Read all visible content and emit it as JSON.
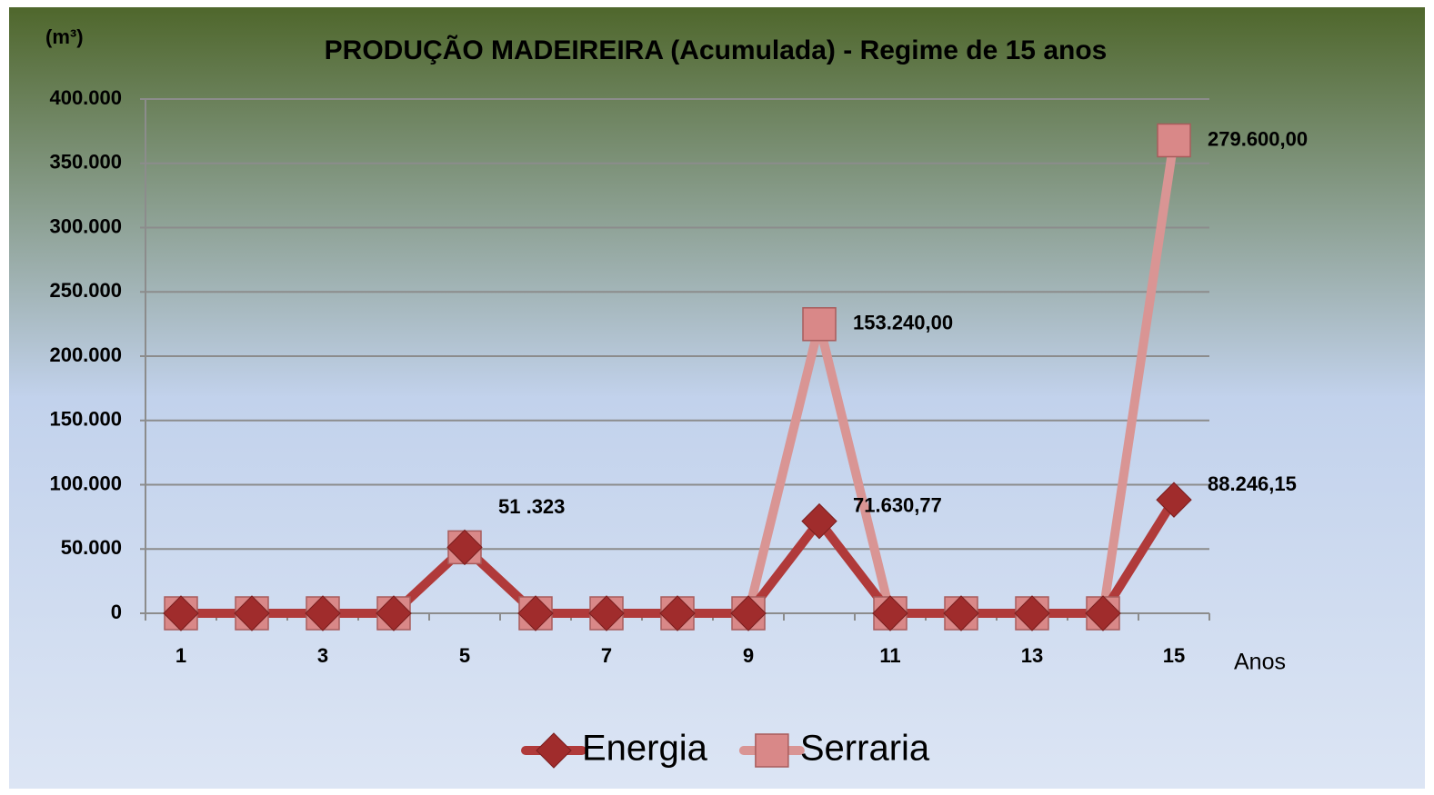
{
  "chart_data": {
    "type": "line",
    "stacked": true,
    "title": "PRODUÇÃO MADEIREIRA (Acumulada)  - Regime de 15 anos",
    "y_label": "(m³)",
    "x_label": "Anos",
    "categories": [
      "1",
      null,
      "3",
      null,
      "5",
      null,
      "7",
      null,
      "9",
      null,
      "11",
      null,
      "13",
      null,
      "15"
    ],
    "series": [
      {
        "name": "Energia",
        "color": "#b03a3a",
        "marker": "diamond",
        "values": [
          0,
          0,
          0,
          0,
          51323,
          0,
          0,
          0,
          0,
          71630.77,
          0,
          0,
          0,
          0,
          88246.15
        ],
        "value_labels": [
          null,
          null,
          null,
          null,
          "51 .323",
          null,
          null,
          null,
          null,
          "71.630,77",
          null,
          null,
          null,
          null,
          "88.246,15"
        ]
      },
      {
        "name": "Serraria",
        "color": "#d99594",
        "marker": "square",
        "values": [
          0,
          0,
          0,
          0,
          0,
          0,
          0,
          0,
          0,
          153240,
          0,
          0,
          0,
          0,
          279600
        ],
        "value_labels": [
          null,
          null,
          null,
          null,
          null,
          null,
          null,
          null,
          null,
          "153.240,00",
          null,
          null,
          null,
          null,
          "279.600,00"
        ]
      }
    ],
    "ylim": [
      0,
      400000
    ],
    "yticks": [
      0,
      {
        "value": 50000,
        "label": "50.000"
      },
      {
        "value": 100000,
        "label": "100.000"
      },
      {
        "value": 150000,
        "label": "150.000"
      },
      {
        "value": 200000,
        "label": "200.000"
      },
      {
        "value": 250000,
        "label": "250.000"
      },
      {
        "value": 300000,
        "label": "300.000"
      },
      {
        "value": 350000,
        "label": "350.000"
      },
      {
        "value": 400000,
        "label": "400.000"
      }
    ],
    "grid": true,
    "legend": "bottom"
  }
}
